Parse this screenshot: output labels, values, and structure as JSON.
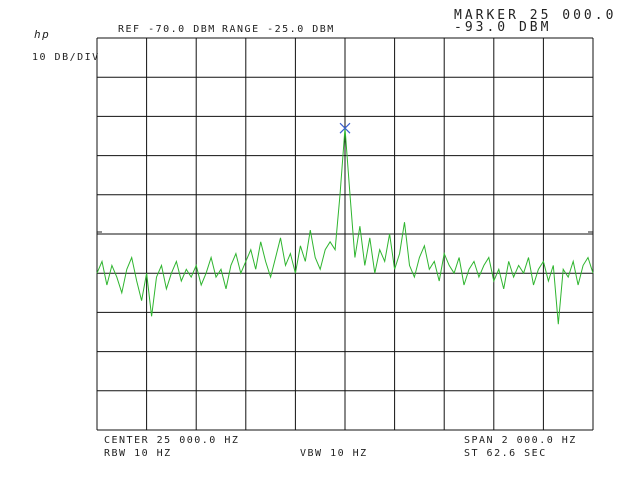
{
  "chart_data": {
    "type": "line",
    "logo": "hp",
    "ref_label": "REF -70.0 DBM",
    "range_label": "RANGE -25.0 DBM",
    "marker_label": "MARKER 25 000.0",
    "marker_value_label": "-93.0 DBM",
    "scale_label": "10 DB/DIV",
    "center_label": "CENTER 25 000.0 HZ",
    "rbw_label": "RBW 10 HZ",
    "vbw_label": "VBW 10 HZ",
    "span_label": "SPAN 2 000.0 HZ",
    "sweep_label": "ST 62.6 SEC",
    "xlim": [
      24000,
      26000
    ],
    "ylim": [
      -170,
      -70
    ],
    "xticks": [
      24000,
      24200,
      24400,
      24600,
      24800,
      25000,
      25200,
      25400,
      25600,
      25800,
      26000
    ],
    "yticks": [
      -170,
      -160,
      -150,
      -140,
      -130,
      -120,
      -110,
      -100,
      -90,
      -80,
      -70
    ],
    "grid": true,
    "color": "#2fb52f",
    "marker": {
      "x": 25000,
      "y": -93,
      "color": "#3a5fd0"
    },
    "x": [
      24000,
      24020,
      24040,
      24060,
      24080,
      24100,
      24120,
      24140,
      24160,
      24180,
      24200,
      24220,
      24240,
      24260,
      24280,
      24300,
      24320,
      24340,
      24360,
      24380,
      24400,
      24420,
      24440,
      24460,
      24480,
      24500,
      24520,
      24540,
      24560,
      24580,
      24600,
      24620,
      24640,
      24660,
      24680,
      24700,
      24720,
      24740,
      24760,
      24780,
      24800,
      24820,
      24840,
      24860,
      24880,
      24900,
      24920,
      24940,
      24960,
      24980,
      25000,
      25020,
      25040,
      25060,
      25080,
      25100,
      25120,
      25140,
      25160,
      25180,
      25200,
      25220,
      25240,
      25260,
      25280,
      25300,
      25320,
      25340,
      25360,
      25380,
      25400,
      25420,
      25440,
      25460,
      25480,
      25500,
      25520,
      25540,
      25560,
      25580,
      25600,
      25620,
      25640,
      25660,
      25680,
      25700,
      25720,
      25740,
      25760,
      25780,
      25800,
      25820,
      25840,
      25860,
      25880,
      25900,
      25920,
      25940,
      25960,
      25980,
      26000
    ],
    "values": [
      -130,
      -127,
      -133,
      -128,
      -131,
      -135,
      -129,
      -126,
      -132,
      -137,
      -130,
      -141,
      -131,
      -128,
      -134,
      -130,
      -127,
      -132,
      -129,
      -131,
      -128,
      -133,
      -130,
      -126,
      -131,
      -129,
      -134,
      -128,
      -125,
      -130,
      -127,
      -124,
      -129,
      -122,
      -127,
      -131,
      -126,
      -121,
      -128,
      -125,
      -130,
      -123,
      -127,
      -119,
      -126,
      -129,
      -124,
      -122,
      -124,
      -110,
      -93,
      -110,
      -126,
      -118,
      -128,
      -121,
      -130,
      -124,
      -127,
      -120,
      -129,
      -125,
      -117,
      -128,
      -131,
      -126,
      -123,
      -129,
      -127,
      -132,
      -125,
      -128,
      -130,
      -126,
      -133,
      -129,
      -127,
      -131,
      -128,
      -126,
      -132,
      -129,
      -134,
      -127,
      -131,
      -128,
      -130,
      -126,
      -133,
      -129,
      -127,
      -132,
      -128,
      -143,
      -129,
      -131,
      -127,
      -133,
      -128,
      -126,
      -130
    ]
  }
}
